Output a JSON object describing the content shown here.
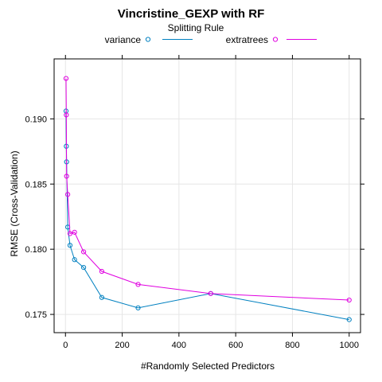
{
  "chart_data": {
    "type": "line",
    "title": "Vincristine_GEXP with RF",
    "legend": {
      "title": "Splitting Rule",
      "placement": "top",
      "entries": [
        "variance",
        "extratrees"
      ]
    },
    "xlabel": "#Randomly Selected Predictors",
    "ylabel": "RMSE (Cross-Validation)",
    "xlim": [
      -40,
      1040
    ],
    "ylim": [
      0.1736,
      0.1946
    ],
    "xticks": [
      0,
      200,
      400,
      600,
      800,
      1000
    ],
    "xtick_labels": [
      "0",
      "200",
      "400",
      "600",
      "800",
      "1000"
    ],
    "yticks": [
      0.175,
      0.18,
      0.185,
      0.19
    ],
    "ytick_labels": [
      "0.175",
      "0.180",
      "0.185",
      "0.190"
    ],
    "grid": true,
    "series": [
      {
        "name": "variance",
        "color": "#0080C0",
        "x": [
          2,
          3,
          4,
          8,
          16,
          32,
          64,
          128,
          256,
          512,
          1000
        ],
        "y": [
          0.1906,
          0.1879,
          0.1867,
          0.1817,
          0.1803,
          0.1792,
          0.1786,
          0.1763,
          0.1755,
          0.1766,
          0.1746
        ]
      },
      {
        "name": "extratrees",
        "color": "#E000E0",
        "x": [
          2,
          3,
          4,
          8,
          16,
          32,
          64,
          128,
          256,
          512,
          1000
        ],
        "y": [
          0.1931,
          0.1903,
          0.1856,
          0.1842,
          0.1812,
          0.1813,
          0.1798,
          0.1783,
          0.1773,
          0.1766,
          0.1761
        ]
      }
    ]
  }
}
